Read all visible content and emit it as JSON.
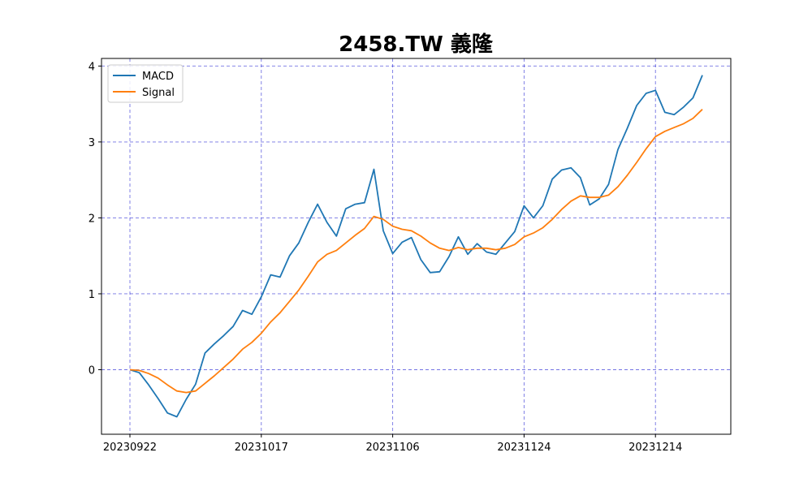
{
  "chart_data": {
    "type": "line",
    "title": "2458.TW 義隆",
    "xlabel": "",
    "ylabel": "",
    "ylim": [
      -0.85,
      4.1
    ],
    "yticks": [
      0,
      1,
      2,
      3,
      4
    ],
    "xtick_labels": [
      "20230922",
      "20231017",
      "20231106",
      "20231124",
      "20231214"
    ],
    "xtick_indices": [
      0,
      14,
      28,
      42,
      56
    ],
    "grid": true,
    "legend_position": "top-left",
    "colors": {
      "MACD": "#1f77b4",
      "Signal": "#ff7f0e",
      "grid": "#0000cc"
    },
    "x_count": 62,
    "series": [
      {
        "name": "MACD",
        "values": [
          0.0,
          -0.04,
          -0.2,
          -0.38,
          -0.57,
          -0.62,
          -0.39,
          -0.19,
          0.22,
          0.34,
          0.45,
          0.57,
          0.78,
          0.73,
          0.96,
          1.25,
          1.22,
          1.5,
          1.67,
          1.94,
          2.18,
          1.94,
          1.76,
          2.12,
          2.18,
          2.2,
          2.64,
          1.83,
          1.53,
          1.68,
          1.74,
          1.45,
          1.28,
          1.29,
          1.49,
          1.75,
          1.52,
          1.66,
          1.55,
          1.52,
          1.67,
          1.82,
          2.16,
          2.0,
          2.16,
          2.51,
          2.63,
          2.66,
          2.53,
          2.17,
          2.25,
          2.44,
          2.9,
          3.18,
          3.48,
          3.64,
          3.68,
          3.39,
          3.36,
          3.46,
          3.58,
          3.88
        ]
      },
      {
        "name": "Signal",
        "values": [
          0.0,
          -0.01,
          -0.05,
          -0.11,
          -0.2,
          -0.28,
          -0.3,
          -0.28,
          -0.18,
          -0.08,
          0.03,
          0.14,
          0.27,
          0.36,
          0.48,
          0.63,
          0.75,
          0.9,
          1.05,
          1.23,
          1.42,
          1.52,
          1.57,
          1.67,
          1.77,
          1.86,
          2.02,
          1.98,
          1.89,
          1.85,
          1.83,
          1.76,
          1.67,
          1.6,
          1.57,
          1.61,
          1.58,
          1.6,
          1.6,
          1.58,
          1.6,
          1.65,
          1.75,
          1.8,
          1.87,
          1.98,
          2.11,
          2.22,
          2.29,
          2.27,
          2.27,
          2.3,
          2.41,
          2.56,
          2.73,
          2.91,
          3.07,
          3.14,
          3.19,
          3.24,
          3.31,
          3.43
        ]
      }
    ]
  }
}
